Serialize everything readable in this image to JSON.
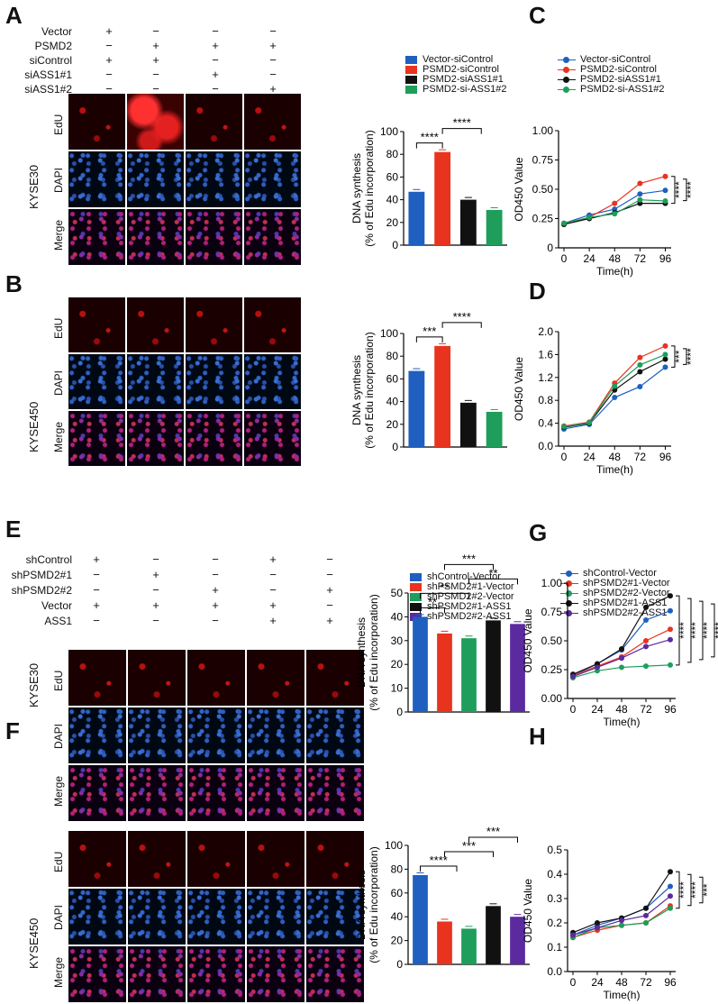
{
  "panels": {
    "A": "A",
    "B": "B",
    "C": "C",
    "D": "D",
    "E": "E",
    "F": "F",
    "G": "G",
    "H": "H"
  },
  "top_conditions": {
    "labels": [
      "Vector",
      "PSMD2",
      "siControl",
      "siASS1#1",
      "siASS1#2"
    ],
    "signs": [
      [
        "+",
        "−",
        "−",
        "−"
      ],
      [
        "−",
        "+",
        "+",
        "+"
      ],
      [
        "+",
        "+",
        "−",
        "−"
      ],
      [
        "−",
        "−",
        "+",
        "−"
      ],
      [
        "−",
        "−",
        "−",
        "+"
      ]
    ]
  },
  "bottom_conditions": {
    "labels": [
      "shControl",
      "shPSMD2#1",
      "shPSMD2#2",
      "Vector",
      "ASS1"
    ],
    "signs": [
      [
        "+",
        "−",
        "−",
        "+",
        "−"
      ],
      [
        "−",
        "+",
        "−",
        "−",
        "−"
      ],
      [
        "−",
        "−",
        "+",
        "−",
        "+"
      ],
      [
        "+",
        "+",
        "+",
        "+",
        "−"
      ],
      [
        "−",
        "−",
        "−",
        "+",
        "+"
      ]
    ]
  },
  "image_rows": [
    "EdU",
    "DAPI",
    "Merge"
  ],
  "cell_lines": {
    "top1": "KYSE30",
    "top2": "KYSE450",
    "bot1": "KYSE30",
    "bot2": "KYSE450"
  },
  "colors": {
    "blue": "#1f5fbf",
    "red": "#e8331f",
    "black": "#111111",
    "green": "#1e9e5a",
    "purple": "#5b2a9e"
  },
  "legend_top_bar": [
    "Vector-siControl",
    "PSMD2-siControl",
    "PSMD2-siASS1#1",
    "PSMD2-si-ASS1#2"
  ],
  "legend_top_line": [
    "Vector-siControl",
    "PSMD2-siControl",
    "PSMD2-siASS1#1",
    "PSMD2-si-ASS1#2"
  ],
  "legend_bottom_bar": [
    "shControl-Vector",
    "shPSMD2#1-Vector",
    "shPSMD2#2-Vector",
    "shPSMD2#1-ASS1",
    "shPSMD2#2-ASS1"
  ],
  "legend_bottom_line": [
    "shControl-Vector",
    "shPSMD2#1-Vector",
    "shPSMD2#2-Vector",
    "shPSMD2#1-ASS1",
    "shPSMD2#2-ASS1"
  ],
  "chart_data": [
    {
      "id": "A-bar",
      "type": "bar",
      "ylabel": "DNA synthesis",
      "ylabel2": "(% of Edu incorporation)",
      "ylim": [
        0,
        100
      ],
      "yticks": [
        0,
        20,
        40,
        60,
        80,
        100
      ],
      "categories": [
        "Vector-siControl",
        "PSMD2-siControl",
        "PSMD2-siASS1#1",
        "PSMD2-si-ASS1#2"
      ],
      "values": [
        47,
        82,
        40,
        31
      ],
      "sig": [
        {
          "text": "****",
          "from": 0,
          "to": 1
        },
        {
          "text": "****",
          "from": 1,
          "to": "2-3"
        }
      ]
    },
    {
      "id": "B-bar",
      "type": "bar",
      "ylabel": "DNA synthesis",
      "ylabel2": "(% of Edu incorporation)",
      "ylim": [
        0,
        100
      ],
      "yticks": [
        0,
        20,
        40,
        60,
        80,
        100
      ],
      "categories": [
        "Vector-siControl",
        "PSMD2-siControl",
        "PSMD2-siASS1#1",
        "PSMD2-si-ASS1#2"
      ],
      "values": [
        67,
        89,
        39,
        31
      ],
      "sig": [
        {
          "text": "***",
          "from": 0,
          "to": 1
        },
        {
          "text": "****",
          "from": 1,
          "to": "2-3"
        }
      ]
    },
    {
      "id": "C-line",
      "type": "line",
      "xlabel": "Time(h)",
      "ylabel": "OD450 Value",
      "ylim": [
        0,
        1.0
      ],
      "yticks": [
        "0",
        "0.25",
        "0.50",
        "0.75",
        "1.00"
      ],
      "x": [
        0,
        24,
        48,
        72,
        96
      ],
      "series": [
        {
          "name": "Vector-siControl",
          "values": [
            0.21,
            0.28,
            0.33,
            0.46,
            0.49
          ]
        },
        {
          "name": "PSMD2-siControl",
          "values": [
            0.2,
            0.26,
            0.38,
            0.55,
            0.61
          ]
        },
        {
          "name": "PSMD2-siASS1#1",
          "values": [
            0.2,
            0.25,
            0.3,
            0.38,
            0.38
          ]
        },
        {
          "name": "PSMD2-si-ASS1#2",
          "values": [
            0.21,
            0.26,
            0.29,
            0.41,
            0.4
          ]
        }
      ],
      "sig": [
        "****",
        "****"
      ]
    },
    {
      "id": "D-line",
      "type": "line",
      "xlabel": "Time(h)",
      "ylabel": "OD450 Value",
      "ylim": [
        0,
        2.0
      ],
      "yticks": [
        "0.0",
        "0.4",
        "0.8",
        "1.2",
        "1.6",
        "2.0"
      ],
      "x": [
        0,
        24,
        48,
        72,
        96
      ],
      "series": [
        {
          "name": "Vector-siControl",
          "values": [
            0.3,
            0.38,
            0.85,
            1.04,
            1.38
          ]
        },
        {
          "name": "PSMD2-siControl",
          "values": [
            0.35,
            0.42,
            1.1,
            1.55,
            1.75
          ]
        },
        {
          "name": "PSMD2-siASS1#1",
          "values": [
            0.33,
            0.4,
            0.98,
            1.3,
            1.52
          ]
        },
        {
          "name": "PSMD2-si-ASS1#2",
          "values": [
            0.34,
            0.41,
            1.05,
            1.42,
            1.6
          ]
        }
      ],
      "sig": [
        "***",
        "****"
      ]
    },
    {
      "id": "E-bar",
      "type": "bar",
      "ylabel": "DNA synthesis",
      "ylabel2": "(% of Edu incorporation)",
      "ylim": [
        0,
        50
      ],
      "yticks": [
        0,
        10,
        20,
        30,
        40,
        50
      ],
      "categories": [
        "shControl-Vector",
        "shPSMD2#1-Vector",
        "shPSMD2#2-Vector",
        "shPSMD2#1-ASS1",
        "shPSMD2#2-ASS1"
      ],
      "values": [
        40,
        33,
        31,
        38.5,
        37
      ],
      "sig": [
        {
          "text": "**",
          "from": 0,
          "to": 1
        },
        {
          "text": "**",
          "from": 0,
          "to": 2
        },
        {
          "text": "**",
          "from": 2,
          "to": 4
        },
        {
          "text": "***",
          "from": 1,
          "to": 3
        }
      ]
    },
    {
      "id": "F-bar",
      "type": "bar",
      "ylabel": "DNA synthesis",
      "ylabel2": "(% of Edu incorporation)",
      "ylim": [
        0,
        100
      ],
      "yticks": [
        0,
        20,
        40,
        60,
        80,
        100
      ],
      "categories": [
        "shControl-Vector",
        "shPSMD2#1-Vector",
        "shPSMD2#2-Vector",
        "shPSMD2#1-ASS1",
        "shPSMD2#2-ASS1"
      ],
      "values": [
        75,
        36,
        30,
        49,
        40
      ],
      "sig": [
        {
          "text": "****",
          "from": 0,
          "to": "1-2"
        },
        {
          "text": "***",
          "from": 1,
          "to": 3
        },
        {
          "text": "***",
          "from": 2,
          "to": 4
        }
      ]
    },
    {
      "id": "G-line",
      "type": "line",
      "xlabel": "Time(h)",
      "ylabel": "OD450 Value",
      "ylim": [
        0,
        1.0
      ],
      "yticks": [
        "0.00",
        "0.25",
        "0.50",
        "0.75",
        "1.00"
      ],
      "x": [
        0,
        24,
        48,
        72,
        96
      ],
      "series": [
        {
          "name": "shControl-Vector",
          "values": [
            0.2,
            0.3,
            0.42,
            0.68,
            0.76
          ]
        },
        {
          "name": "shPSMD2#1-Vector",
          "values": [
            0.2,
            0.28,
            0.36,
            0.5,
            0.6
          ]
        },
        {
          "name": "shPSMD2#2-Vector",
          "values": [
            0.18,
            0.24,
            0.27,
            0.28,
            0.29
          ]
        },
        {
          "name": "shPSMD2#1-ASS1",
          "values": [
            0.21,
            0.3,
            0.43,
            0.79,
            0.89
          ]
        },
        {
          "name": "shPSMD2#2-ASS1",
          "values": [
            0.19,
            0.27,
            0.35,
            0.45,
            0.51
          ]
        }
      ],
      "sig": [
        "****",
        "****",
        "****",
        "****"
      ]
    },
    {
      "id": "H-line",
      "type": "line",
      "xlabel": "Time(h)",
      "ylabel": "OD450 Value",
      "ylim": [
        0,
        0.5
      ],
      "yticks": [
        "0.0",
        "0.1",
        "0.2",
        "0.3",
        "0.4",
        "0.5"
      ],
      "x": [
        0,
        24,
        48,
        72,
        96
      ],
      "series": [
        {
          "name": "shControl-Vector",
          "values": [
            0.15,
            0.19,
            0.22,
            0.26,
            0.35
          ]
        },
        {
          "name": "shPSMD2#1-Vector",
          "values": [
            0.14,
            0.17,
            0.19,
            0.2,
            0.27
          ]
        },
        {
          "name": "shPSMD2#2-Vector",
          "values": [
            0.14,
            0.18,
            0.19,
            0.2,
            0.26
          ]
        },
        {
          "name": "shPSMD2#1-ASS1",
          "values": [
            0.16,
            0.2,
            0.22,
            0.26,
            0.41
          ]
        },
        {
          "name": "shPSMD2#2-ASS1",
          "values": [
            0.15,
            0.18,
            0.21,
            0.23,
            0.31
          ]
        }
      ],
      "sig": [
        "****",
        "****",
        "***"
      ]
    }
  ]
}
